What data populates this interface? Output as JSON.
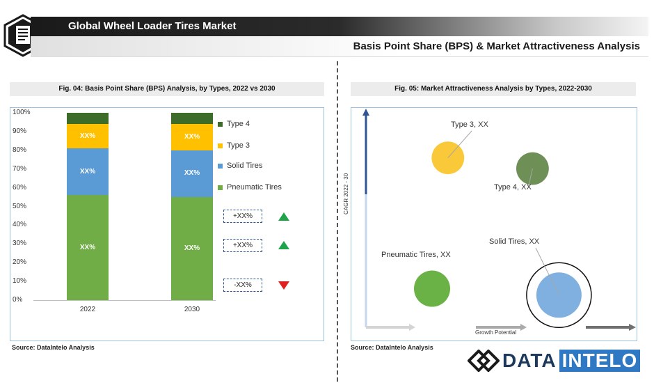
{
  "header": {
    "title": "Global Wheel Loader Tires Market",
    "subtitle": "Basis Point Share (BPS) & Market Attractiveness Analysis"
  },
  "left": {
    "fig_title": "Fig. 04: Basis Point Share  (BPS) Analysis, by Types, 2022 vs 2030",
    "source": "Source: DataIntelo  Analysis",
    "changes": [
      "+XX%",
      "+XX%",
      "-XX%"
    ]
  },
  "right": {
    "fig_title": "Fig. 05: Market Attractiveness Analysis by Types, 2022-2030",
    "source": "Source: DataIntelo  Analysis",
    "y_axis_label": "CAGR 2022 - 30",
    "x_axis_label": "Growth Potential"
  },
  "brand": {
    "part1": "DATA",
    "part2": "INTELO"
  },
  "colors": {
    "pneumatic": "#70ad47",
    "solid": "#5b9bd5",
    "type3": "#ffc000",
    "type4": "#3d6b2a",
    "bubble_type3": "#f9c93a",
    "bubble_type4": "#6e8f55",
    "bubble_solid": "#7fb0e0",
    "bubble_pneumatic": "#6ab146"
  },
  "chart_data": [
    {
      "type": "bar",
      "stacked": true,
      "categories": [
        "2022",
        "2030"
      ],
      "yticks": [
        "0%",
        "10%",
        "20%",
        "30%",
        "40%",
        "50%",
        "60%",
        "70%",
        "80%",
        "90%",
        "100%"
      ],
      "ylim": [
        0,
        100
      ],
      "series": [
        {
          "name": "Pneumatic Tires",
          "values": [
            56,
            55
          ],
          "label": "XX%"
        },
        {
          "name": "Solid Tires",
          "values": [
            25,
            25
          ],
          "label": "XX%"
        },
        {
          "name": "Type 3",
          "values": [
            13,
            14
          ],
          "label": "XX%"
        },
        {
          "name": "Type 4",
          "values": [
            6,
            6
          ],
          "label": ""
        }
      ],
      "legend": [
        "Type 4",
        "Type 3",
        "Solid Tires",
        "Pneumatic Tires"
      ],
      "legend_position": "right"
    },
    {
      "type": "scatter",
      "bubbles": [
        {
          "name": "Type 3, XX",
          "x": 3.1,
          "y": 7.9,
          "size": 0.9
        },
        {
          "name": "Type 4, XX",
          "x": 6.3,
          "y": 7.4,
          "size": 0.9
        },
        {
          "name": "Pneumatic Tires, XX",
          "x": 2.5,
          "y": 1.8,
          "size": 1.0
        },
        {
          "name": "Solid Tires, XX",
          "x": 7.3,
          "y": 1.5,
          "size": 1.25,
          "ring": true
        }
      ],
      "xlabel": "Growth Potential",
      "ylabel": "CAGR 2022 - 30",
      "xlim": [
        0,
        10
      ],
      "ylim": [
        0,
        10
      ]
    }
  ]
}
